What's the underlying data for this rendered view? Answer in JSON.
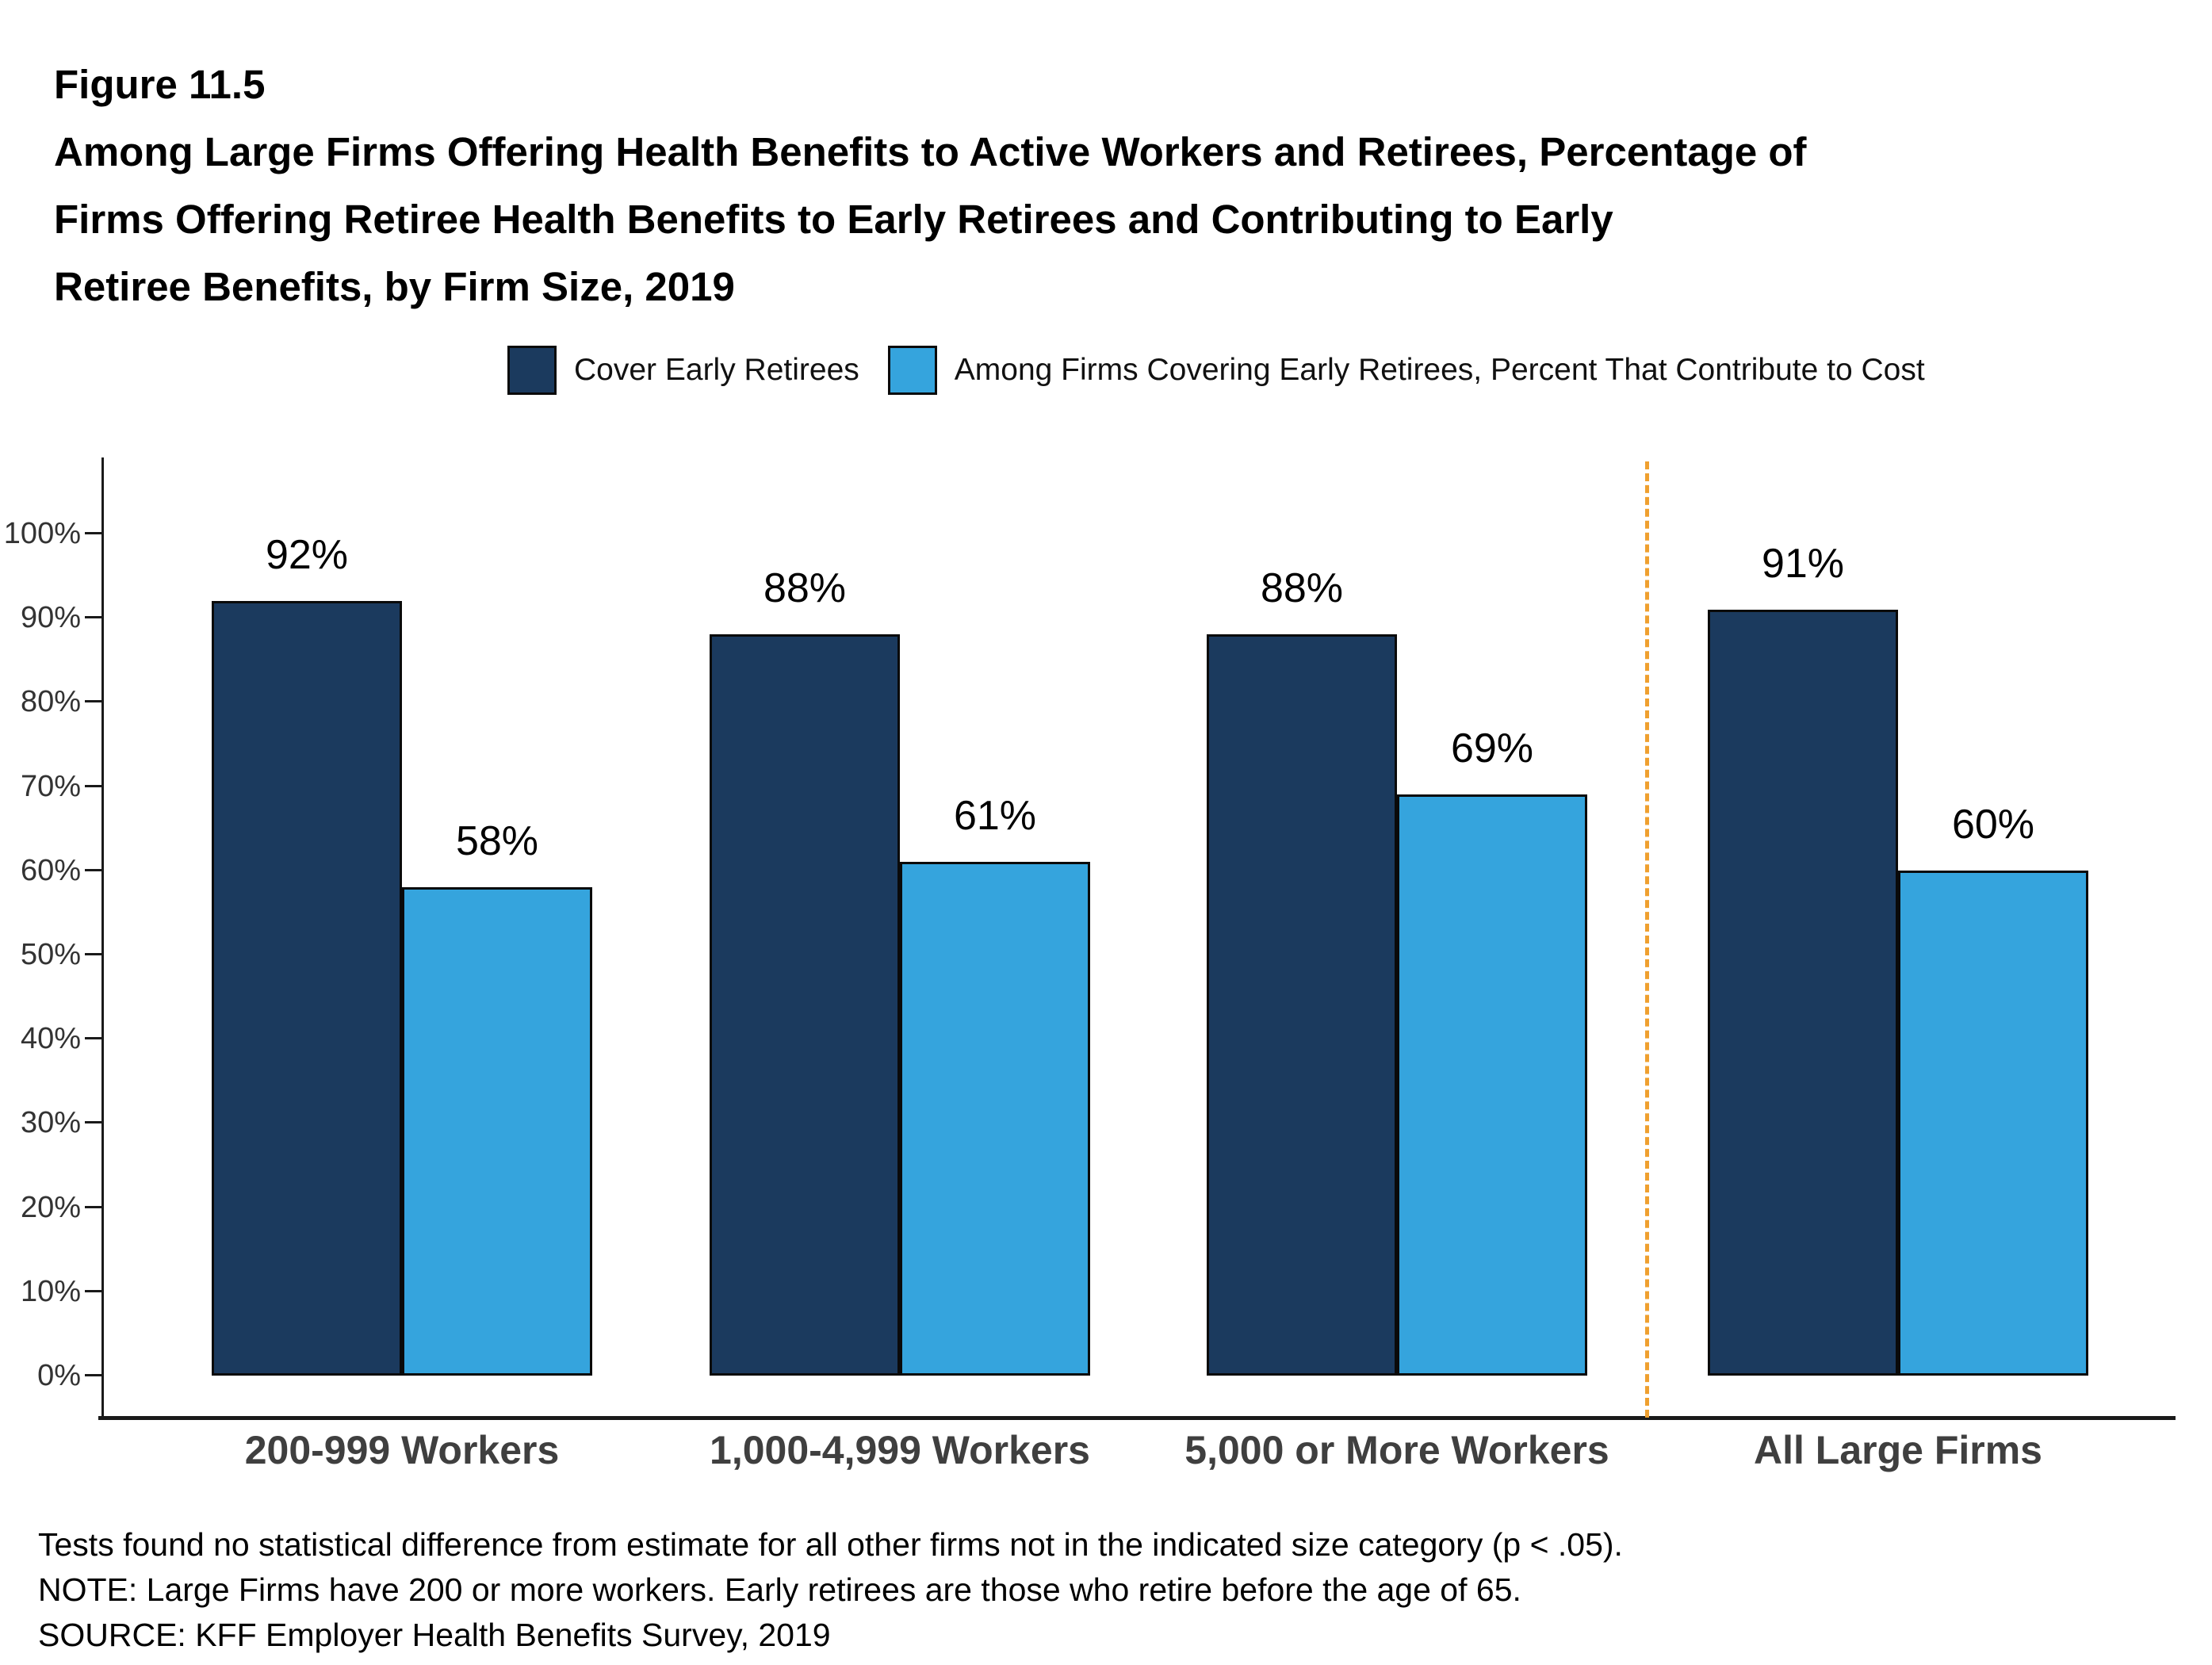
{
  "figure": {
    "number": "Figure 11.5",
    "title_lines": [
      "Among Large Firms Offering Health Benefits to Active Workers and Retirees, Percentage of",
      "Firms Offering Retiree Health Benefits to Early Retirees and Contributing to Early",
      "Retiree Benefits, by Firm Size, 2019"
    ]
  },
  "legend": [
    {
      "label": "Cover Early Retirees",
      "color": "#1b3a5e"
    },
    {
      "label": "Among Firms Covering Early Retirees, Percent That Contribute to Cost",
      "color": "#35a4dd"
    }
  ],
  "chart_data": {
    "type": "bar",
    "title": "Among Large Firms Offering Health Benefits to Active Workers and Retirees, Percentage of Firms Offering Retiree Health Benefits to Early Retirees and Contributing to Early Retiree Benefits, by Firm Size, 2019",
    "categories": [
      "200-999 Workers",
      "1,000-4,999 Workers",
      "5,000 or More Workers",
      "All Large Firms"
    ],
    "series": [
      {
        "name": "Cover Early Retirees",
        "color": "#1b3a5e",
        "values": [
          92,
          88,
          88,
          91
        ]
      },
      {
        "name": "Among Firms Covering Early Retirees, Percent That Contribute to Cost",
        "color": "#35a4dd",
        "values": [
          58,
          61,
          69,
          60
        ]
      }
    ],
    "xlabel": "",
    "ylabel": "",
    "ylim": [
      0,
      100
    ],
    "yticks": [
      "0%",
      "10%",
      "20%",
      "30%",
      "40%",
      "50%",
      "60%",
      "70%",
      "80%",
      "90%",
      "100%"
    ],
    "grid": false,
    "legend_position": "top",
    "separator": {
      "after_category": "5,000 or More Workers",
      "color": "#efa02f",
      "style": "dashed"
    }
  },
  "footnotes": [
    "Tests found no statistical difference from estimate for all other firms not in the indicated size category (p < .05).",
    "NOTE: Large Firms have 200 or more workers. Early retirees are those who retire before the age of 65.",
    "SOURCE: KFF Employer Health Benefits Survey, 2019"
  ]
}
